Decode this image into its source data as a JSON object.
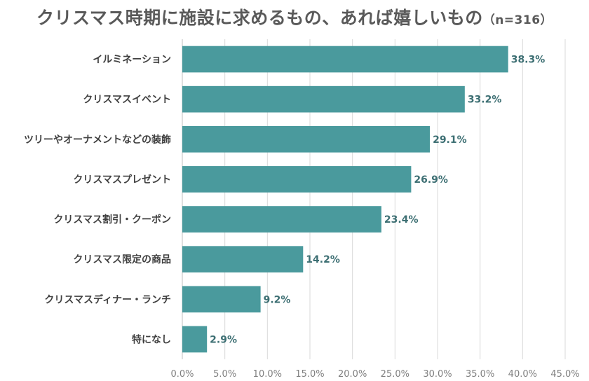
{
  "chart_data": {
    "type": "bar",
    "orientation": "horizontal",
    "title": "クリスマス時期に施設に求めるもの、あれば嬉しいもの",
    "subtitle": "（n=316）",
    "categories": [
      "イルミネーション",
      "クリスマスイベント",
      "ツリーやオーナメントなどの装飾",
      "クリスマスプレゼント",
      "クリスマス割引・クーポン",
      "クリスマス限定の商品",
      "クリスマスディナー・ランチ",
      "特になし"
    ],
    "values": [
      38.3,
      33.2,
      29.1,
      26.9,
      23.4,
      14.2,
      9.2,
      2.9
    ],
    "value_labels": [
      "38.3%",
      "33.2%",
      "29.1%",
      "26.9%",
      "23.4%",
      "14.2%",
      "9.2%",
      "2.9%"
    ],
    "xlim": [
      0,
      45
    ],
    "xticks": [
      0,
      5,
      10,
      15,
      20,
      25,
      30,
      35,
      40,
      45
    ],
    "xtick_labels": [
      "0.0%",
      "5.0%",
      "10.0%",
      "15.0%",
      "20.0%",
      "25.0%",
      "30.0%",
      "35.0%",
      "40.0%",
      "45.0%"
    ],
    "xlabel": "",
    "ylabel": "",
    "grid": true,
    "bar_color": "#4a9a9d",
    "value_label_color": "#3d6f73"
  }
}
